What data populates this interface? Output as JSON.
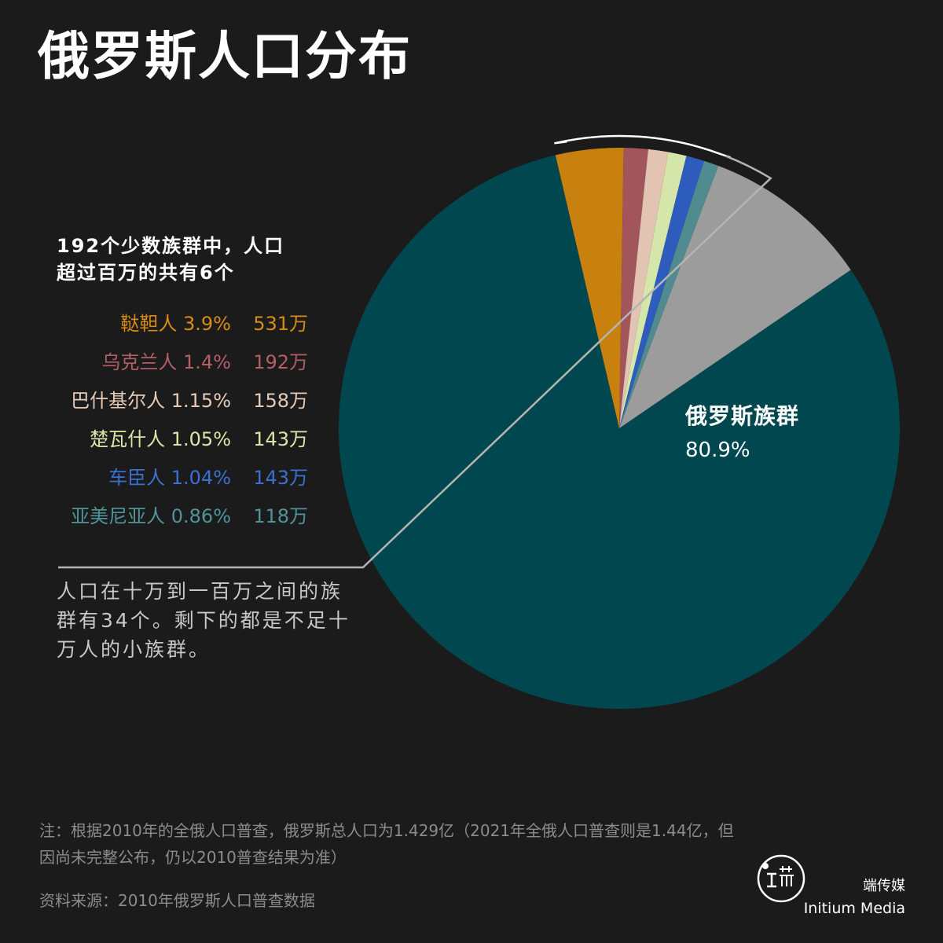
{
  "title": "俄罗斯人口分布",
  "subtitle": {
    "line1": "192个少数族群中，人口",
    "line2": "超过百万的共有6个"
  },
  "chart_data": {
    "type": "pie",
    "title": "俄罗斯人口分布",
    "slices": [
      {
        "name": "俄罗斯族群",
        "percent": 80.9,
        "pct_label": "80.9%",
        "color": "#00474f"
      },
      {
        "name": "鞑靼人",
        "percent": 3.9,
        "pct_label": "3.9%",
        "population": "531万",
        "color": "#c8800e"
      },
      {
        "name": "乌克兰人",
        "percent": 1.4,
        "pct_label": "1.4%",
        "population": "192万",
        "color": "#a2565b"
      },
      {
        "name": "巴什基尔人",
        "percent": 1.15,
        "pct_label": "1.15%",
        "population": "158万",
        "color": "#e3c3b2"
      },
      {
        "name": "楚瓦什人",
        "percent": 1.05,
        "pct_label": "1.05%",
        "population": "143万",
        "color": "#d5e6ab"
      },
      {
        "name": "车臣人",
        "percent": 1.04,
        "pct_label": "1.04%",
        "population": "143万",
        "color": "#2e5cbd"
      },
      {
        "name": "亚美尼亚人",
        "percent": 0.86,
        "pct_label": "0.86%",
        "population": "118万",
        "color": "#4f8b8f"
      },
      {
        "name": "",
        "percent": 9.7,
        "pct_label": "",
        "color": "#9c9c9c"
      }
    ]
  },
  "legend_text_colors": [
    "#d98c14",
    "#b45e66",
    "#e6cbb8",
    "#d8e8a8",
    "#3b6fd0",
    "#4f9499"
  ],
  "bracket_color": "#ffffff",
  "gray_bracket_color": "#b4b4b4",
  "mid_text": "人口在十万到一百万之间的族群有34个。剩下的都是不足十万人的小族群。",
  "note": "注：根据2010年的全俄人口普查，俄罗斯总人口为1.429亿（2021年全俄人口普查则是1.44亿，但因尚未完整公布，仍以2010普查结果为准）",
  "source": "资料来源：2010年俄罗斯人口普查数据",
  "brand": {
    "cn": "端传媒",
    "en": "Initium Media",
    "logo_icon": "initium-logo-icon"
  }
}
